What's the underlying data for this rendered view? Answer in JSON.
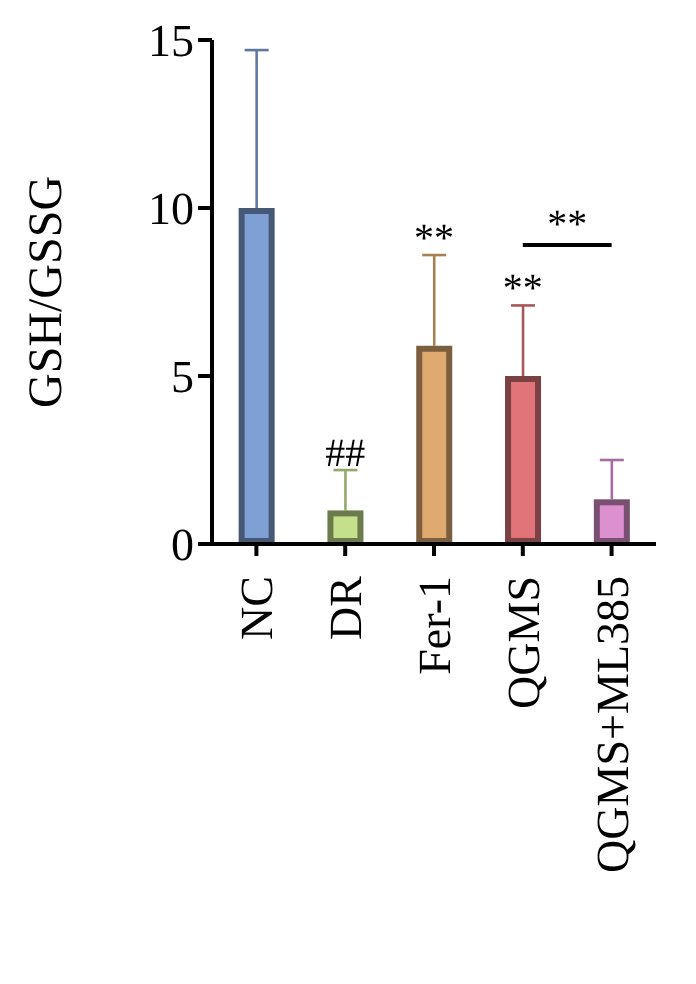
{
  "chart_data": {
    "type": "bar",
    "ylabel": "GSH/GSSG",
    "categories": [
      "NC",
      "DR",
      "Fer-1",
      "QGMS",
      "QGMS+ML385"
    ],
    "values": [
      10,
      1,
      5.9,
      5,
      1.33
    ],
    "colors": [
      "#7fa0d4",
      "#c4e08a",
      "#deaa70",
      "#e07478",
      "#dc90d0"
    ],
    "errors": [
      [
        10,
        14.7
      ],
      [
        1,
        2.2
      ],
      [
        5.9,
        8.6
      ],
      [
        5,
        7.1
      ],
      [
        1.33,
        2.5
      ]
    ],
    "ylim": [
      0,
      15
    ],
    "yticks": [
      0,
      5,
      10,
      15
    ],
    "grid": false,
    "legend": false,
    "annotations": [
      {
        "text": "##",
        "x": "DR",
        "y": 2.2
      },
      {
        "text": "**",
        "x": "Fer-1",
        "y": 8.6
      },
      {
        "text": "**",
        "x": "QGMS",
        "y": 7.1
      },
      "**"
    ]
  }
}
